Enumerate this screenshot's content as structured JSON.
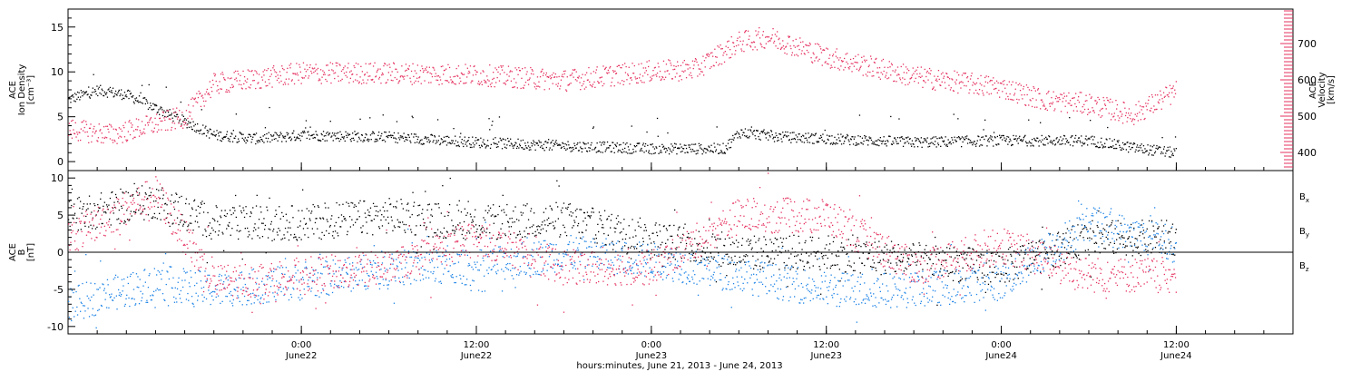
{
  "colors": {
    "black": "#000000",
    "red": "#e5315f",
    "blue": "#1a82e6"
  },
  "chart_data": {
    "type": "scatter",
    "time_range": [
      "2013-06-21T08:00",
      "2013-06-24T20:00"
    ],
    "xlabel": "hours:minutes, June 21, 2013 - June 24, 2013",
    "x_ticks": [
      {
        "t": "2013-06-22T00:00",
        "time": "0:00",
        "day": "June22"
      },
      {
        "t": "2013-06-22T12:00",
        "time": "12:00",
        "day": "June22"
      },
      {
        "t": "2013-06-23T00:00",
        "time": "0:00",
        "day": "June23"
      },
      {
        "t": "2013-06-23T12:00",
        "time": "12:00",
        "day": "June23"
      },
      {
        "t": "2013-06-24T00:00",
        "time": "0:00",
        "day": "June24"
      },
      {
        "t": "2013-06-24T12:00",
        "time": "12:00",
        "day": "June24"
      }
    ],
    "panels": [
      {
        "ylabel_lines": [
          "ACE",
          "Ion Density",
          "[cm⁻³]"
        ],
        "ylim": [
          -1,
          17
        ],
        "yticks": [
          0,
          5,
          10,
          15
        ],
        "y2label_lines": [
          "ACE",
          "Velocity",
          "[km/s]"
        ],
        "y2lim": [
          350,
          795
        ],
        "y2ticks": [
          400,
          500,
          600,
          700
        ],
        "series": [
          {
            "color_key": "black",
            "axis": "left",
            "points": [
              [
                "2013-06-21T08:00",
                7.0
              ],
              [
                "2013-06-21T10:00",
                8.0
              ],
              [
                "2013-06-21T12:00",
                7.5
              ],
              [
                "2013-06-21T14:00",
                6.0
              ],
              [
                "2013-06-21T16:00",
                4.5
              ],
              [
                "2013-06-21T18:00",
                3.0
              ],
              [
                "2013-06-21T21:00",
                2.6
              ],
              [
                "2013-06-22T00:00",
                3.0
              ],
              [
                "2013-06-22T06:00",
                2.8
              ],
              [
                "2013-06-22T12:00",
                2.2
              ],
              [
                "2013-06-22T18:00",
                1.8
              ],
              [
                "2013-06-23T00:00",
                1.5
              ],
              [
                "2013-06-23T05:00",
                1.5
              ],
              [
                "2013-06-23T06:00",
                3.3
              ],
              [
                "2013-06-23T09:00",
                2.8
              ],
              [
                "2013-06-23T12:00",
                2.6
              ],
              [
                "2013-06-23T18:00",
                2.2
              ],
              [
                "2013-06-24T00:00",
                2.4
              ],
              [
                "2013-06-24T06:00",
                2.4
              ],
              [
                "2013-06-24T09:00",
                1.6
              ],
              [
                "2013-06-24T12:00",
                1.0
              ]
            ]
          },
          {
            "color_key": "red",
            "axis": "right",
            "points": [
              [
                "2013-06-21T08:00",
                465
              ],
              [
                "2013-06-21T11:00",
                450
              ],
              [
                "2013-06-21T14:00",
                480
              ],
              [
                "2013-06-21T16:00",
                500
              ],
              [
                "2013-06-21T18:00",
                590
              ],
              [
                "2013-06-22T00:00",
                620
              ],
              [
                "2013-06-22T06:00",
                620
              ],
              [
                "2013-06-22T12:00",
                615
              ],
              [
                "2013-06-22T18:00",
                600
              ],
              [
                "2013-06-23T00:00",
                625
              ],
              [
                "2013-06-23T03:00",
                630
              ],
              [
                "2013-06-23T06:00",
                705
              ],
              [
                "2013-06-23T08:00",
                720
              ],
              [
                "2013-06-23T12:00",
                665
              ],
              [
                "2013-06-23T18:00",
                610
              ],
              [
                "2013-06-24T00:00",
                580
              ],
              [
                "2013-06-24T03:00",
                545
              ],
              [
                "2013-06-24T06:00",
                535
              ],
              [
                "2013-06-24T09:00",
                505
              ],
              [
                "2013-06-24T12:00",
                570
              ]
            ]
          }
        ]
      },
      {
        "ylabel_lines": [
          "ACE",
          "B",
          "[nT]"
        ],
        "ylim": [
          -11,
          11
        ],
        "yticks": [
          -10,
          -5,
          0,
          5,
          10
        ],
        "zero_line": true,
        "legend": [
          {
            "label": "Bx",
            "color_key": "black"
          },
          {
            "label": "By",
            "color_key": "blue"
          },
          {
            "label": "Bz",
            "color_key": "red"
          }
        ],
        "series": [
          {
            "name": "Bx",
            "color_key": "black",
            "points": [
              [
                "2013-06-21T08:00",
                5
              ],
              [
                "2013-06-21T14:00",
                7
              ],
              [
                "2013-06-21T18:00",
                4
              ],
              [
                "2013-06-22T00:00",
                4
              ],
              [
                "2013-06-22T06:00",
                5
              ],
              [
                "2013-06-22T12:00",
                4
              ],
              [
                "2013-06-22T18:00",
                4.5
              ],
              [
                "2013-06-23T00:00",
                2
              ],
              [
                "2013-06-23T06:00",
                0
              ],
              [
                "2013-06-23T12:00",
                0
              ],
              [
                "2013-06-23T18:00",
                -1
              ],
              [
                "2013-06-24T00:00",
                -2
              ],
              [
                "2013-06-24T06:00",
                2
              ],
              [
                "2013-06-24T12:00",
                2
              ]
            ]
          },
          {
            "name": "By",
            "color_key": "blue",
            "points": [
              [
                "2013-06-21T08:00",
                -7
              ],
              [
                "2013-06-21T14:00",
                -4
              ],
              [
                "2013-06-21T18:00",
                -5
              ],
              [
                "2013-06-22T00:00",
                -4
              ],
              [
                "2013-06-22T06:00",
                -2
              ],
              [
                "2013-06-22T12:00",
                -2
              ],
              [
                "2013-06-22T18:00",
                0
              ],
              [
                "2013-06-23T00:00",
                -1
              ],
              [
                "2013-06-23T06:00",
                -3
              ],
              [
                "2013-06-23T12:00",
                -5
              ],
              [
                "2013-06-23T18:00",
                -5
              ],
              [
                "2013-06-24T00:00",
                -4
              ],
              [
                "2013-06-24T06:00",
                4
              ],
              [
                "2013-06-24T12:00",
                1
              ]
            ]
          },
          {
            "name": "Bz",
            "color_key": "red",
            "points": [
              [
                "2013-06-21T08:00",
                2
              ],
              [
                "2013-06-21T14:00",
                8
              ],
              [
                "2013-06-21T18:00",
                -4
              ],
              [
                "2013-06-22T00:00",
                -3
              ],
              [
                "2013-06-22T06:00",
                -2
              ],
              [
                "2013-06-22T12:00",
                2
              ],
              [
                "2013-06-22T18:00",
                -2
              ],
              [
                "2013-06-23T00:00",
                -2
              ],
              [
                "2013-06-23T06:00",
                5
              ],
              [
                "2013-06-23T12:00",
                5
              ],
              [
                "2013-06-23T18:00",
                -2
              ],
              [
                "2013-06-24T00:00",
                1
              ],
              [
                "2013-06-24T06:00",
                -3
              ],
              [
                "2013-06-24T12:00",
                -3
              ]
            ]
          }
        ]
      }
    ]
  }
}
